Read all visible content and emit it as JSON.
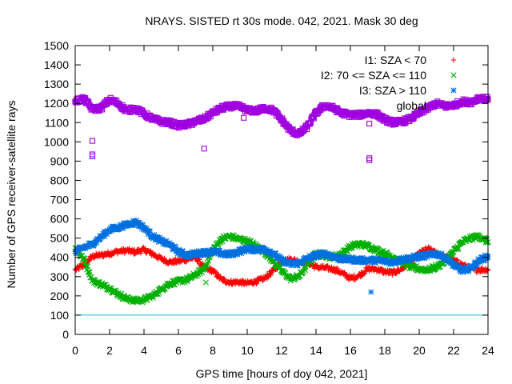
{
  "chart_data": {
    "type": "line",
    "title": "NRAYS. SISTED rt 30s mode. 042, 2021. Mask 30 deg",
    "xlabel": "GPS time [hours of doy 042, 2021]",
    "ylabel": "Number of GPS receiver-satellite rays",
    "xlim": [
      0,
      24
    ],
    "ylim": [
      0,
      1500
    ],
    "xticks": [
      0,
      2,
      4,
      6,
      8,
      10,
      12,
      14,
      16,
      18,
      20,
      22,
      24
    ],
    "yticks": [
      0,
      100,
      200,
      300,
      400,
      500,
      600,
      700,
      800,
      900,
      1000,
      1100,
      1200,
      1300,
      1400,
      1500
    ],
    "grid": false,
    "legend_position": "top-right",
    "reference_line": {
      "y": 100,
      "color": "#00c0e0"
    },
    "series": [
      {
        "name": "I1: SZA < 70",
        "marker": "+",
        "color": "#ff0000",
        "x": [
          0,
          0.5,
          1,
          1.5,
          2,
          2.5,
          3,
          3.5,
          4,
          4.5,
          5,
          5.5,
          6,
          6.5,
          7,
          7.5,
          8,
          8.5,
          9,
          9.5,
          10,
          10.5,
          11,
          11.5,
          12,
          12.5,
          13,
          13.5,
          14,
          14.5,
          15,
          15.5,
          16,
          16.5,
          17,
          17.5,
          18,
          18.5,
          19,
          19.5,
          20,
          20.5,
          21,
          21.5,
          22,
          22.5,
          23,
          23.5,
          24
        ],
        "values": [
          335,
          360,
          405,
          412,
          420,
          432,
          435,
          428,
          440,
          418,
          392,
          375,
          380,
          390,
          400,
          345,
          330,
          285,
          270,
          272,
          265,
          275,
          290,
          330,
          375,
          390,
          380,
          375,
          350,
          345,
          340,
          320,
          290,
          305,
          340,
          340,
          325,
          320,
          340,
          375,
          420,
          445,
          420,
          400,
          385,
          362,
          340,
          335,
          338
        ]
      },
      {
        "name": "I2: 70 <= SZA <= 110",
        "marker": "x",
        "color": "#00b000",
        "x": [
          0,
          0.5,
          1,
          1.5,
          2,
          2.5,
          3,
          3.5,
          4,
          4.5,
          5,
          5.5,
          6,
          6.5,
          7,
          7.5,
          8,
          8.5,
          9,
          9.5,
          10,
          10.5,
          11,
          11.5,
          12,
          12.5,
          13,
          13.5,
          14,
          14.5,
          15,
          15.5,
          16,
          16.5,
          17,
          17.5,
          18,
          18.5,
          19,
          19.5,
          20,
          20.5,
          21,
          21.5,
          22,
          22.5,
          23,
          23.5,
          24
        ],
        "values": [
          450,
          390,
          280,
          260,
          240,
          210,
          185,
          175,
          180,
          200,
          235,
          265,
          275,
          285,
          310,
          340,
          440,
          495,
          510,
          495,
          485,
          460,
          430,
          380,
          330,
          290,
          300,
          360,
          420,
          410,
          400,
          420,
          455,
          470,
          460,
          440,
          420,
          400,
          375,
          350,
          340,
          335,
          350,
          380,
          430,
          480,
          500,
          510,
          480
        ]
      },
      {
        "name": "I3: SZA > 110",
        "marker": "*",
        "color": "#0070e0",
        "x": [
          0,
          0.5,
          1,
          1.5,
          2,
          2.5,
          3,
          3.5,
          4,
          4.5,
          5,
          5.5,
          6,
          6.5,
          7,
          7.5,
          8,
          8.5,
          9,
          9.5,
          10,
          10.5,
          11,
          11.5,
          12,
          12.5,
          13,
          13.5,
          14,
          14.5,
          15,
          15.5,
          16,
          16.5,
          17,
          17.5,
          18,
          18.5,
          19,
          19.5,
          20,
          20.5,
          21,
          21.5,
          22,
          22.5,
          23,
          23.5,
          24
        ],
        "values": [
          430,
          450,
          470,
          505,
          545,
          555,
          570,
          585,
          555,
          510,
          485,
          465,
          430,
          410,
          420,
          425,
          430,
          420,
          415,
          430,
          445,
          440,
          445,
          420,
          385,
          365,
          370,
          395,
          410,
          420,
          405,
          390,
          390,
          385,
          385,
          385,
          380,
          375,
          390,
          395,
          405,
          410,
          420,
          400,
          360,
          330,
          345,
          385,
          405
        ]
      },
      {
        "name": "global",
        "marker": "square",
        "color": "#a000e0",
        "x": [
          0,
          0.5,
          1,
          1.5,
          2,
          2.5,
          3,
          3.5,
          4,
          4.5,
          5,
          5.5,
          6,
          6.5,
          7,
          7.5,
          8,
          8.5,
          9,
          9.5,
          10,
          10.5,
          11,
          11.5,
          12,
          12.5,
          13,
          13.5,
          14,
          14.5,
          15,
          15.5,
          16,
          16.5,
          17,
          17.5,
          18,
          18.5,
          19,
          19.5,
          20,
          20.5,
          21,
          21.5,
          22,
          22.5,
          23,
          23.5,
          24
        ],
        "values": [
          1210,
          1225,
          1170,
          1175,
          1220,
          1200,
          1160,
          1175,
          1145,
          1120,
          1105,
          1100,
          1085,
          1090,
          1105,
          1120,
          1150,
          1175,
          1185,
          1185,
          1165,
          1160,
          1175,
          1165,
          1115,
          1060,
          1040,
          1080,
          1150,
          1190,
          1175,
          1150,
          1140,
          1140,
          1150,
          1145,
          1115,
          1100,
          1105,
          1120,
          1150,
          1175,
          1200,
          1185,
          1190,
          1210,
          1205,
          1230,
          1220
        ]
      }
    ],
    "outliers": [
      {
        "series": "global",
        "x": 1.0,
        "y": 1005
      },
      {
        "series": "global",
        "x": 1.0,
        "y": 935
      },
      {
        "series": "global",
        "x": 1.0,
        "y": 925
      },
      {
        "series": "global",
        "x": 7.5,
        "y": 965
      },
      {
        "series": "global",
        "x": 9.8,
        "y": 1125
      },
      {
        "series": "global",
        "x": 17.1,
        "y": 1095
      },
      {
        "series": "global",
        "x": 17.1,
        "y": 915
      },
      {
        "series": "global",
        "x": 17.1,
        "y": 905
      },
      {
        "series": "I2: 70 <= SZA <= 110",
        "x": 7.6,
        "y": 270
      },
      {
        "series": "I3: SZA > 110",
        "x": 17.2,
        "y": 220
      }
    ]
  }
}
